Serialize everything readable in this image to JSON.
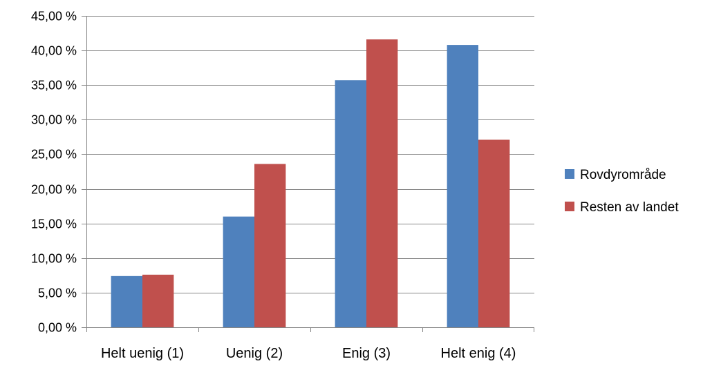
{
  "chart_data": {
    "type": "bar",
    "categories": [
      "Helt uenig (1)",
      "Uenig (2)",
      "Enig (3)",
      "Helt enig (4)"
    ],
    "series": [
      {
        "name": "Rovdyrområde",
        "color": "#4F81BD",
        "values": [
          7.4,
          16.0,
          35.7,
          40.8
        ]
      },
      {
        "name": "Resten av landet",
        "color": "#C0504D",
        "values": [
          7.6,
          23.6,
          41.6,
          27.1
        ]
      }
    ],
    "ylim": [
      0,
      45
    ],
    "yticks": [
      0,
      5,
      10,
      15,
      20,
      25,
      30,
      35,
      40,
      45
    ],
    "ytick_labels": [
      "0,00 %",
      "5,00 %",
      "10,00 %",
      "15,00 %",
      "20,00 %",
      "25,00 %",
      "30,00 %",
      "35,00 %",
      "40,00 %",
      "45,00 %"
    ],
    "title": "",
    "xlabel": "",
    "ylabel": "",
    "grid": true,
    "legend_position": "right",
    "gridline_color": "#868686",
    "axis_color": "#868686"
  }
}
